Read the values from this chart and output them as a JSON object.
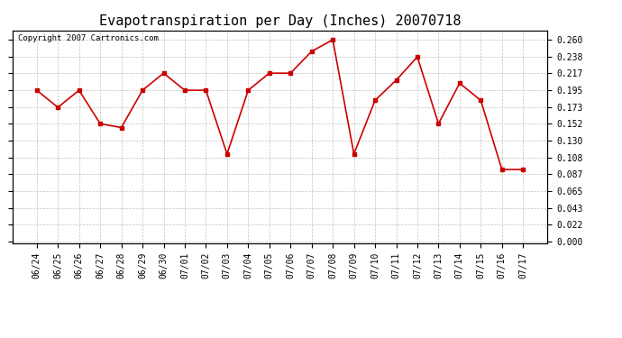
{
  "title": "Evapotranspiration per Day (Inches) 20070718",
  "copyright_text": "Copyright 2007 Cartronics.com",
  "dates": [
    "06/24",
    "06/25",
    "06/26",
    "06/27",
    "06/28",
    "06/29",
    "06/30",
    "07/01",
    "07/02",
    "07/03",
    "07/04",
    "07/05",
    "07/06",
    "07/07",
    "07/08",
    "07/09",
    "07/10",
    "07/11",
    "07/12",
    "07/13",
    "07/14",
    "07/15",
    "07/16",
    "07/17"
  ],
  "values": [
    0.195,
    0.173,
    0.195,
    0.152,
    0.147,
    0.195,
    0.217,
    0.195,
    0.195,
    0.113,
    0.195,
    0.217,
    0.217,
    0.245,
    0.26,
    0.113,
    0.182,
    0.208,
    0.238,
    0.152,
    0.204,
    0.182,
    0.093,
    0.093
  ],
  "line_color": "#cc0000",
  "marker": "s",
  "marker_size": 3,
  "line_width": 1.2,
  "yticks": [
    0.0,
    0.022,
    0.043,
    0.065,
    0.087,
    0.108,
    0.13,
    0.152,
    0.173,
    0.195,
    0.217,
    0.238,
    0.26
  ],
  "background_color": "#ffffff",
  "grid_color": "#bbbbbb",
  "title_fontsize": 11,
  "tick_fontsize": 7,
  "copyright_fontsize": 6.5
}
